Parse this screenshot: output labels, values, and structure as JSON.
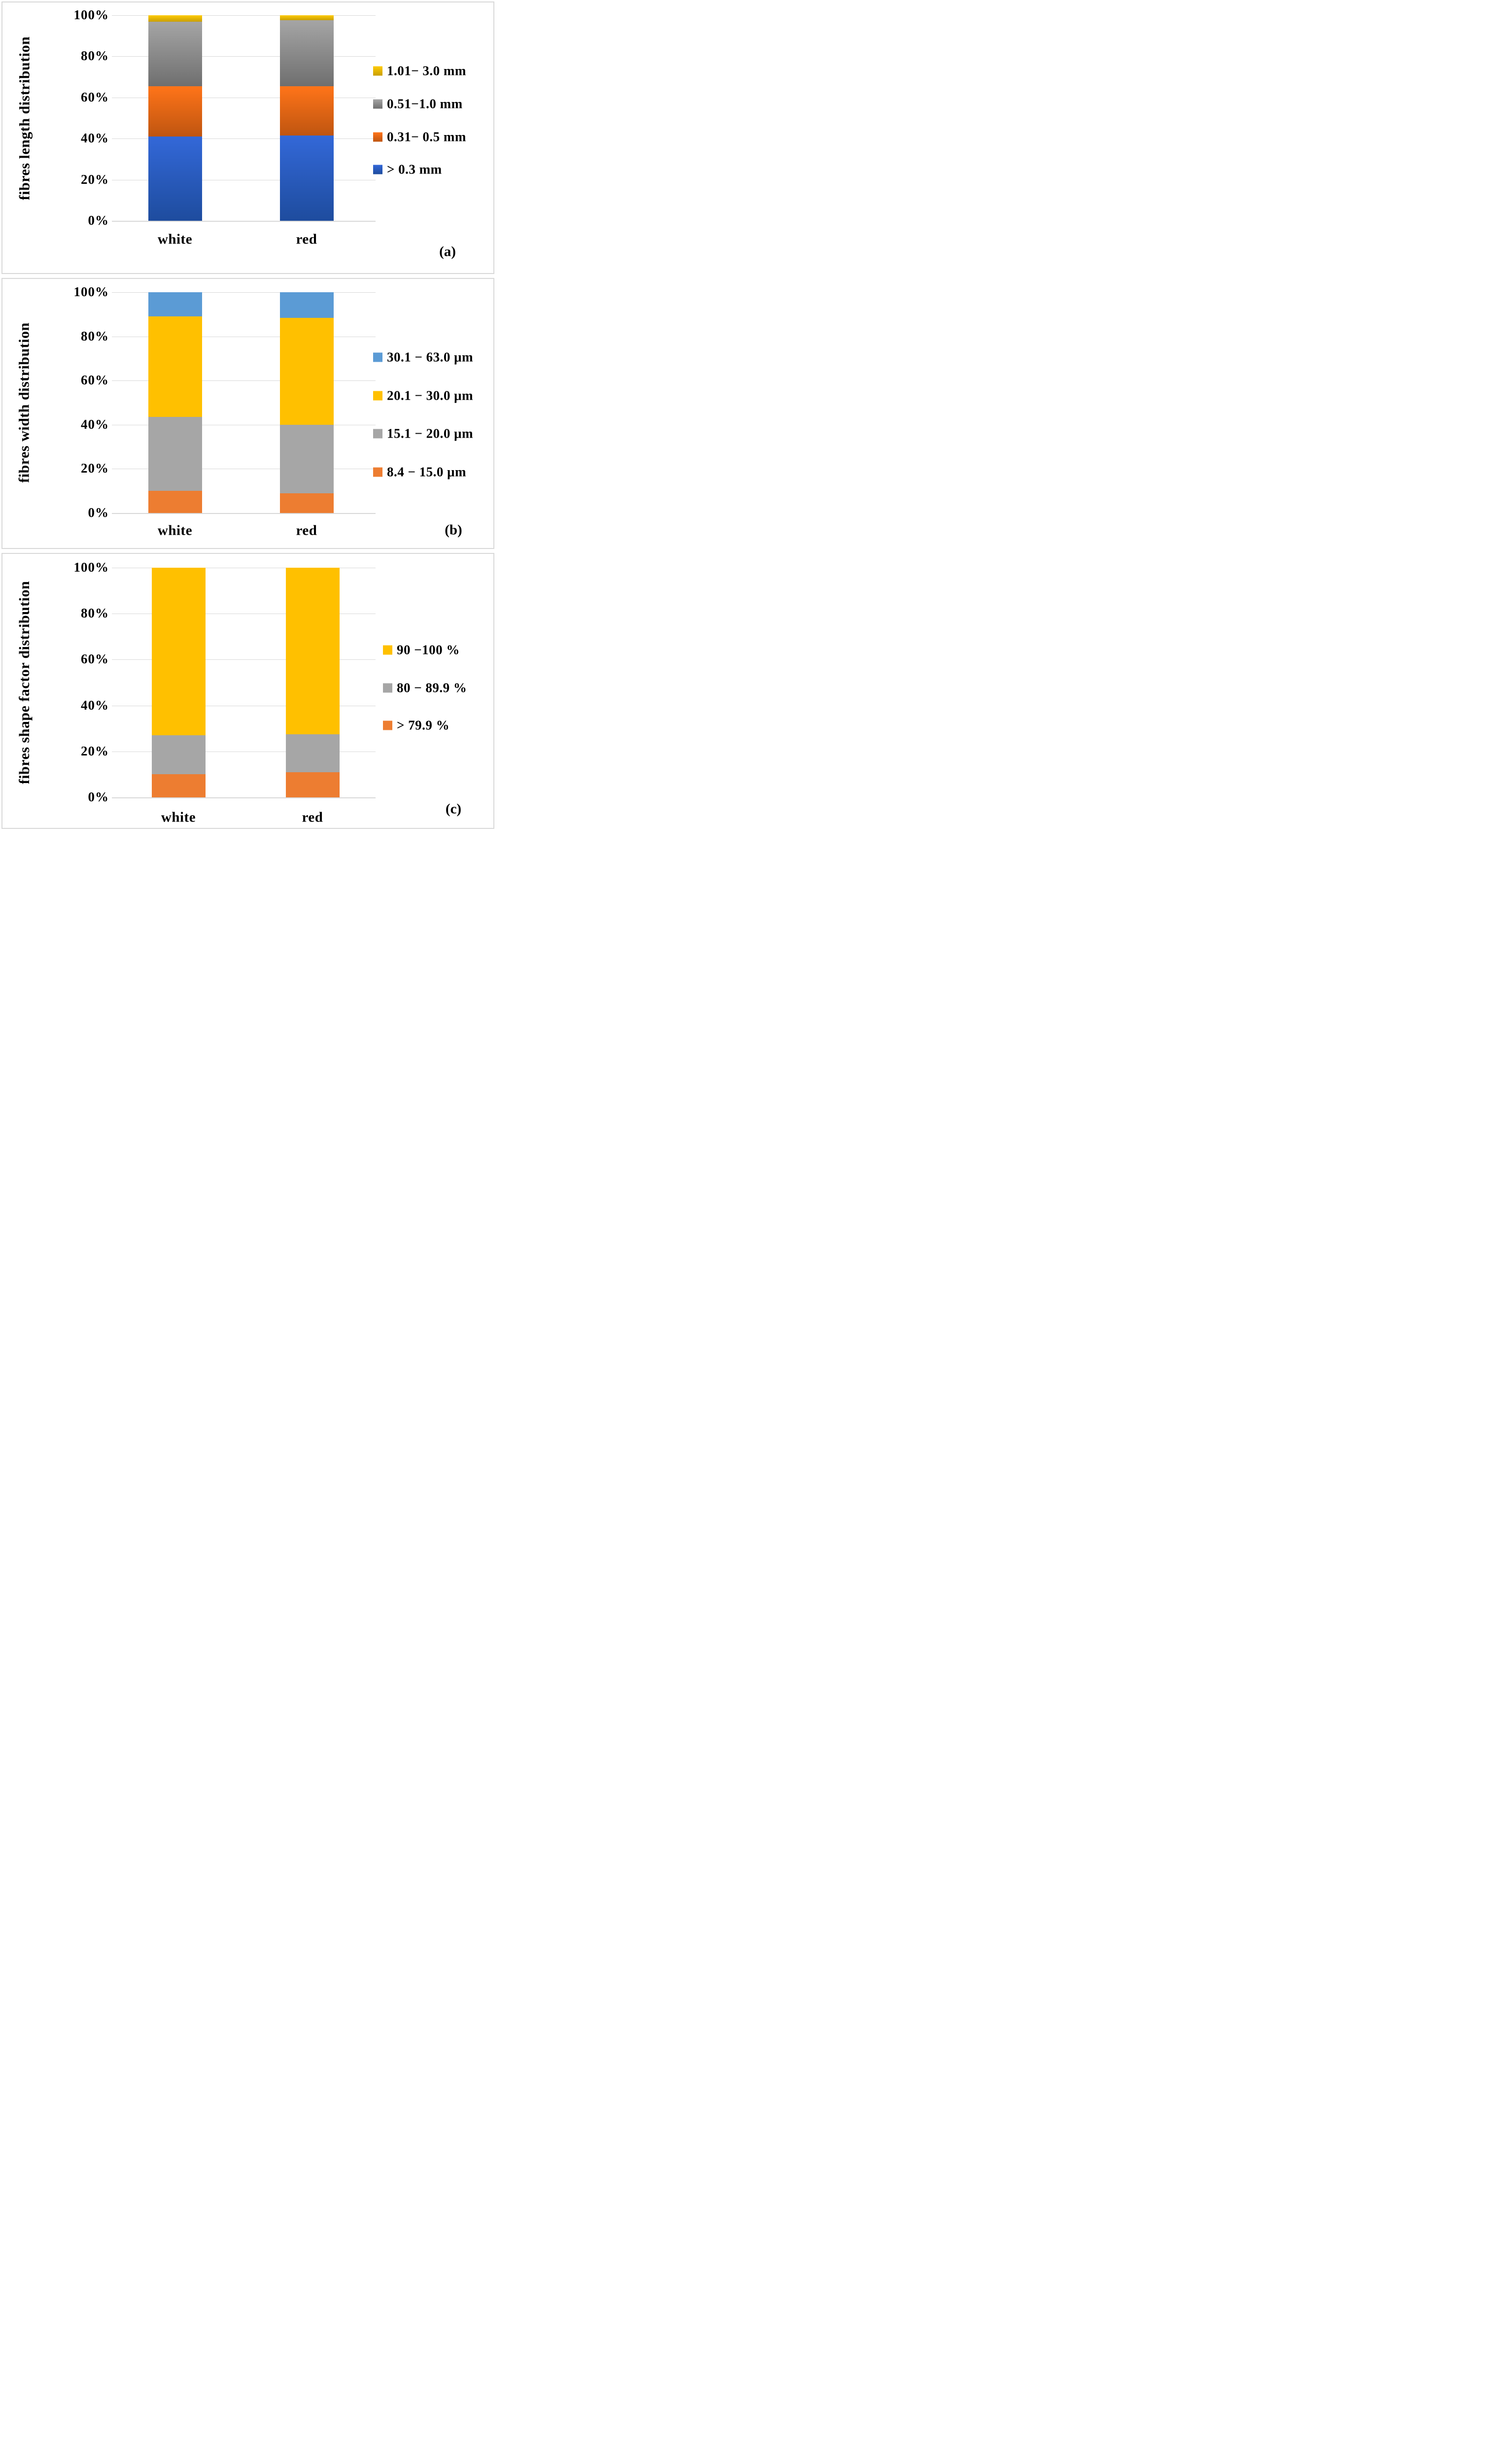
{
  "figure": {
    "background_color": "#FFFFFF",
    "panel_border_color": "#D9D9D9",
    "grid_color": "#D9D9D9",
    "category_labels": [
      "white",
      "red"
    ]
  },
  "chart_data": [
    {
      "type": "bar",
      "stacked": true,
      "panel_label": "(a)",
      "ylabel": "fibres length distribution",
      "yticks": [
        "100%",
        "80%",
        "60%",
        "40%",
        "20%",
        "0%"
      ],
      "ylim": [
        0,
        100
      ],
      "grid": true,
      "legend_position": "right",
      "categories": [
        "white",
        "red"
      ],
      "series": [
        {
          "name": "> 0.3 mm",
          "color": "#2E62C4",
          "gradient": [
            "#3368D8",
            "#1E4C9E"
          ],
          "values": [
            41,
            41.5
          ]
        },
        {
          "name": "0.31− 0.5 mm",
          "color": "#ED7D31",
          "gradient": [
            "#FF7419",
            "#BF5510"
          ],
          "values": [
            24.5,
            24
          ]
        },
        {
          "name": "0.51−1.0 mm",
          "color": "#A6A6A6",
          "gradient": [
            "#A5A5A5",
            "#6F6F6F"
          ],
          "values": [
            31.5,
            32
          ]
        },
        {
          "name": "1.01− 3.0 mm",
          "color": "#FFC000",
          "gradient": [
            "#FFCB05",
            "#C99F03"
          ],
          "values": [
            3,
            2.5
          ]
        }
      ],
      "legend_series_indices_top_to_bottom": [
        3,
        2,
        1,
        0
      ]
    },
    {
      "type": "bar",
      "stacked": true,
      "panel_label": "(b)",
      "ylabel": "fibres width distribution",
      "yticks": [
        "100%",
        "80%",
        "60%",
        "40%",
        "20%",
        "0%"
      ],
      "ylim": [
        0,
        100
      ],
      "grid": true,
      "legend_position": "right",
      "categories": [
        "white",
        "red"
      ],
      "series": [
        {
          "name": "8.4 − 15.0 μm",
          "color": "#ED7D31",
          "values": [
            10,
            9
          ]
        },
        {
          "name": "15.1 − 20.0 μm",
          "color": "#A6A6A6",
          "values": [
            33.5,
            31
          ]
        },
        {
          "name": "20.1 − 30.0 μm",
          "color": "#FFC000",
          "values": [
            45.5,
            48.5
          ]
        },
        {
          "name": "30.1 − 63.0 μm",
          "color": "#5B9BD5",
          "values": [
            11,
            11.5
          ]
        }
      ],
      "legend_series_indices_top_to_bottom": [
        3,
        2,
        1,
        0
      ]
    },
    {
      "type": "bar",
      "stacked": true,
      "panel_label": "(c)",
      "ylabel": "fibres shape factor distribution",
      "yticks": [
        "100%",
        "80%",
        "60%",
        "40%",
        "20%",
        "0%"
      ],
      "ylim": [
        0,
        100
      ],
      "grid": true,
      "legend_position": "right",
      "categories": [
        "white",
        "red"
      ],
      "series": [
        {
          "name": "> 79.9 %",
          "color": "#ED7D31",
          "values": [
            10,
            11
          ]
        },
        {
          "name": "80 − 89.9 %",
          "color": "#A6A6A6",
          "values": [
            17,
            16.5
          ]
        },
        {
          "name": "90 −100 %",
          "color": "#FFC000",
          "values": [
            73,
            72.5
          ]
        }
      ],
      "legend_series_indices_top_to_bottom": [
        2,
        1,
        0
      ]
    }
  ]
}
